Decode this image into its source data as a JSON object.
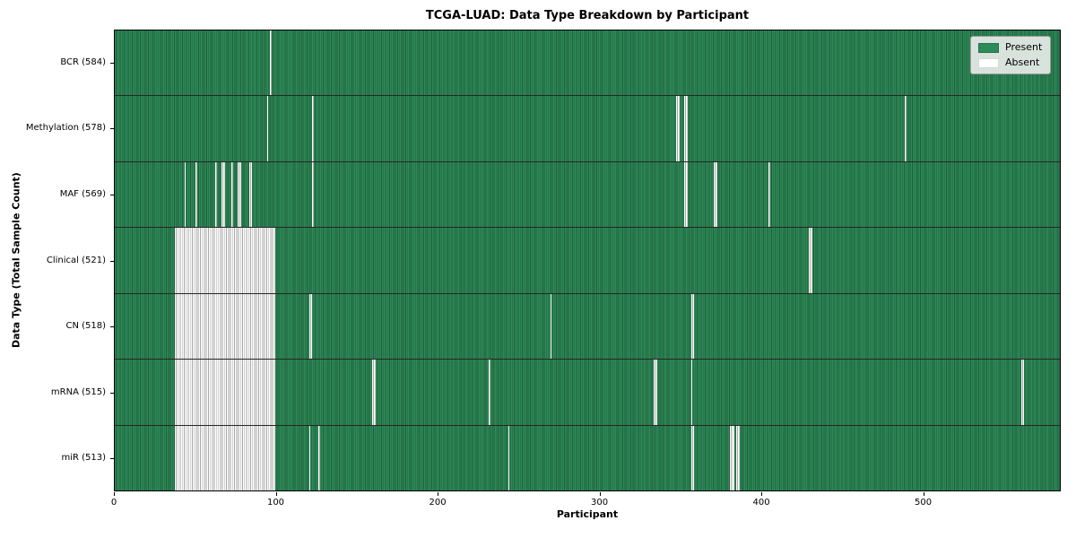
{
  "chart_data": {
    "type": "heatmap",
    "title": "TCGA-LUAD: Data Type Breakdown by Participant",
    "xlabel": "Participant",
    "ylabel": "Data Type (Total Sample Count)",
    "x_ticks": [
      0,
      100,
      200,
      300,
      400,
      500
    ],
    "x_range": [
      0,
      585
    ],
    "n_participants": 585,
    "grid": false,
    "legend_position": "upper right",
    "colors": {
      "present": "#2e8b57",
      "present_edge": "#1e5c3c",
      "absent": "#ffffff",
      "absent_edge": "#a8a8a8",
      "row_separator": "#262626",
      "axes_border": "#000000"
    },
    "legend": [
      {
        "label": "Present",
        "color": "#2e8b57"
      },
      {
        "label": "Absent",
        "color": "#ffffff"
      }
    ],
    "rows": [
      {
        "label": "BCR (584)",
        "data_type": "BCR",
        "present_count": 584,
        "absent_ranges": [
          [
            96,
            96
          ]
        ]
      },
      {
        "label": "Methylation (578)",
        "data_type": "Methylation",
        "present_count": 578,
        "absent_ranges": [
          [
            94,
            94
          ],
          [
            122,
            122
          ],
          [
            347,
            348
          ],
          [
            352,
            353
          ],
          [
            488,
            488
          ]
        ]
      },
      {
        "label": "MAF (569)",
        "data_type": "MAF",
        "present_count": 569,
        "absent_ranges": [
          [
            43,
            43
          ],
          [
            50,
            50
          ],
          [
            62,
            62
          ],
          [
            66,
            67
          ],
          [
            72,
            72
          ],
          [
            76,
            77
          ],
          [
            83,
            84
          ],
          [
            122,
            122
          ],
          [
            352,
            353
          ],
          [
            370,
            371
          ],
          [
            404,
            404
          ]
        ]
      },
      {
        "label": "Clinical (521)",
        "data_type": "Clinical",
        "present_count": 521,
        "absent_ranges": [
          [
            37,
            98
          ],
          [
            429,
            430
          ]
        ]
      },
      {
        "label": "CN (518)",
        "data_type": "CN",
        "present_count": 518,
        "absent_ranges": [
          [
            37,
            98
          ],
          [
            120,
            121
          ],
          [
            269,
            269
          ],
          [
            356,
            357
          ]
        ]
      },
      {
        "label": "mRNA (515)",
        "data_type": "mRNA",
        "present_count": 515,
        "absent_ranges": [
          [
            37,
            98
          ],
          [
            159,
            160
          ],
          [
            231,
            231
          ],
          [
            333,
            334
          ],
          [
            356,
            356
          ],
          [
            560,
            561
          ]
        ]
      },
      {
        "label": "miR (513)",
        "data_type": "miR",
        "present_count": 513,
        "absent_ranges": [
          [
            37,
            98
          ],
          [
            120,
            120
          ],
          [
            126,
            126
          ],
          [
            243,
            243
          ],
          [
            356,
            357
          ],
          [
            380,
            382
          ],
          [
            384,
            385
          ]
        ]
      }
    ]
  }
}
